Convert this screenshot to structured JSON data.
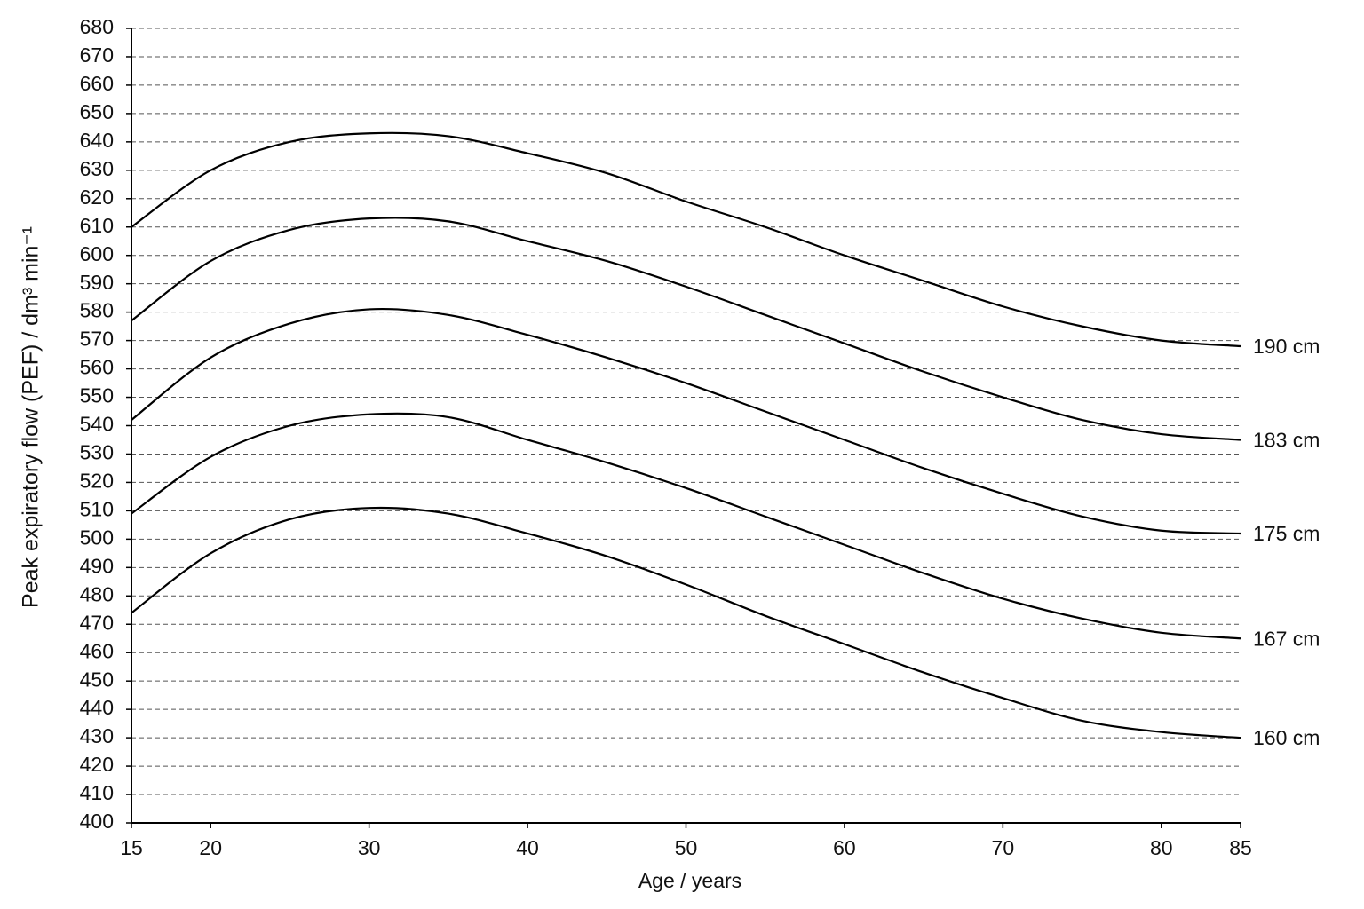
{
  "chart_data": {
    "type": "line",
    "x_label": "Age / years",
    "y_label": "Peak expiratory flow (PEF) / dm³ min⁻¹",
    "x": [
      15,
      20,
      25,
      30,
      35,
      40,
      45,
      50,
      55,
      60,
      65,
      70,
      75,
      80,
      85
    ],
    "series": [
      {
        "name": "190 cm",
        "color": "#000000",
        "values": [
          610,
          630,
          640,
          643,
          642,
          636,
          629,
          619,
          610,
          600,
          591,
          582,
          575,
          570,
          568
        ]
      },
      {
        "name": "183 cm",
        "color": "#000000",
        "values": [
          577,
          598,
          609,
          613,
          612,
          605,
          598,
          589,
          579,
          569,
          559,
          550,
          542,
          537,
          535
        ]
      },
      {
        "name": "175 cm",
        "color": "#000000",
        "values": [
          542,
          564,
          576,
          581,
          579,
          572,
          564,
          555,
          545,
          535,
          525,
          516,
          508,
          503,
          502
        ]
      },
      {
        "name": "167 cm",
        "color": "#000000",
        "values": [
          509,
          529,
          540,
          544,
          543,
          535,
          527,
          518,
          508,
          498,
          488,
          479,
          472,
          467,
          465
        ]
      },
      {
        "name": "160 cm",
        "color": "#000000",
        "values": [
          474,
          495,
          507,
          511,
          509,
          502,
          494,
          484,
          473,
          463,
          453,
          444,
          436,
          432,
          430
        ]
      }
    ],
    "xlim": [
      15,
      85
    ],
    "xticks": [
      15,
      20,
      30,
      40,
      50,
      60,
      70,
      80,
      85
    ],
    "ylim": [
      400,
      680
    ],
    "yticks": [
      400,
      410,
      420,
      430,
      440,
      450,
      460,
      470,
      480,
      490,
      500,
      510,
      520,
      530,
      540,
      550,
      560,
      570,
      580,
      590,
      600,
      610,
      620,
      630,
      640,
      650,
      660,
      670,
      680
    ],
    "grid": true
  }
}
